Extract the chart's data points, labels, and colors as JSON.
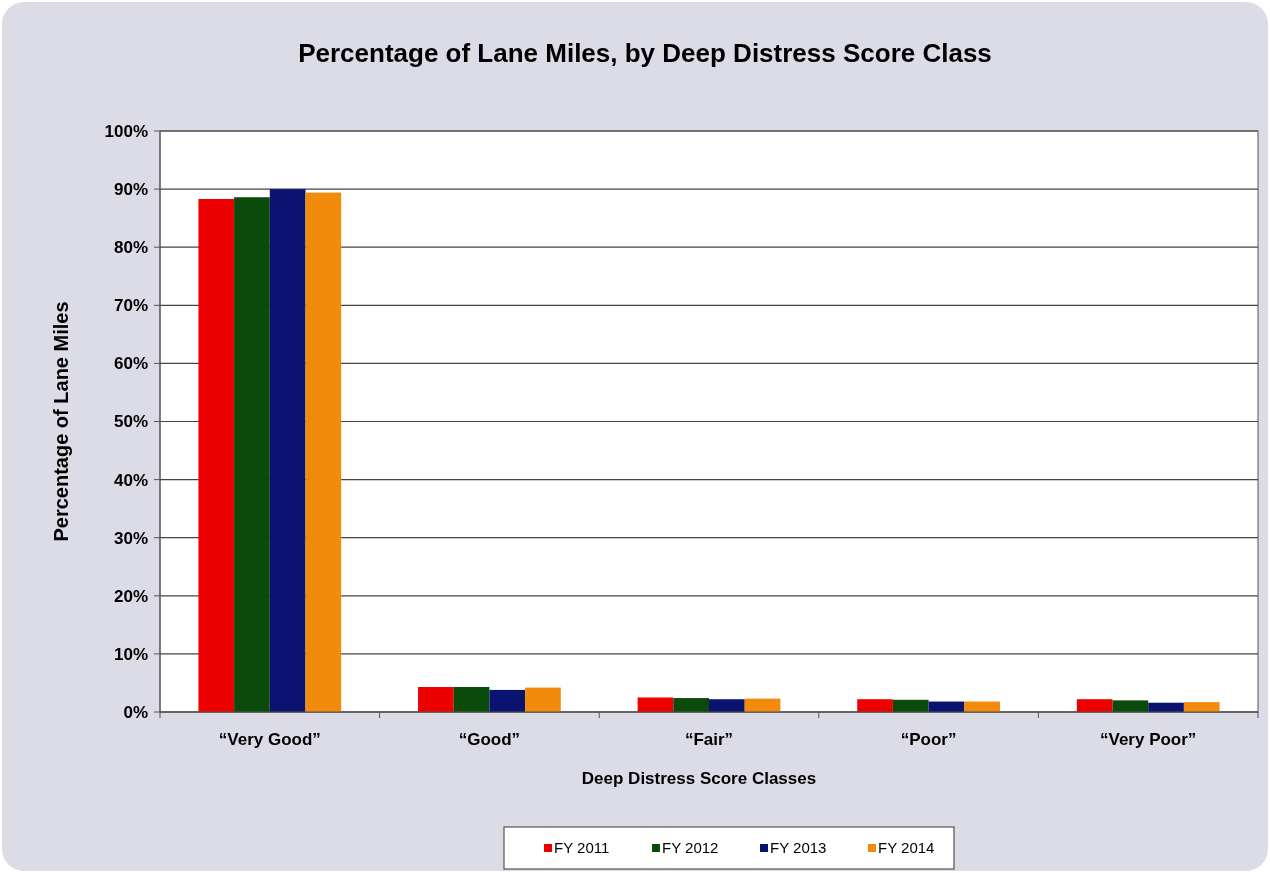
{
  "chart_data": {
    "type": "bar",
    "title": "Percentage of Lane Miles, by Deep Distress Score Class",
    "xlabel": "Deep Distress Score Classes",
    "ylabel": "Percentage of Lane Miles",
    "categories": [
      "“Very Good”",
      "“Good”",
      "“Fair”",
      "“Poor”",
      "“Very Poor”"
    ],
    "series": [
      {
        "name": "FY 2011",
        "color": "#ee0000",
        "values": [
          88.3,
          4.3,
          2.5,
          2.2,
          2.2
        ]
      },
      {
        "name": "FY 2012",
        "color": "#0a4a0a",
        "values": [
          88.6,
          4.3,
          2.4,
          2.1,
          2.0
        ]
      },
      {
        "name": "FY 2013",
        "color": "#0a1470",
        "values": [
          90.0,
          3.8,
          2.2,
          1.8,
          1.6
        ]
      },
      {
        "name": "FY 2014",
        "color": "#f28a0c",
        "values": [
          89.4,
          4.2,
          2.3,
          1.8,
          1.7
        ]
      }
    ],
    "ylim": [
      0,
      100
    ],
    "yticks": [
      {
        "value": 0,
        "label": "0%"
      },
      {
        "value": 10,
        "label": "10%"
      },
      {
        "value": 20,
        "label": "20%"
      },
      {
        "value": 30,
        "label": "30%"
      },
      {
        "value": 40,
        "label": "40%"
      },
      {
        "value": 50,
        "label": "50%"
      },
      {
        "value": 60,
        "label": "60%"
      },
      {
        "value": 70,
        "label": "70%"
      },
      {
        "value": 80,
        "label": "80%"
      },
      {
        "value": 90,
        "label": "90%"
      },
      {
        "value": 100,
        "label": "100%"
      }
    ],
    "grid": "y",
    "legend": "bottom"
  }
}
